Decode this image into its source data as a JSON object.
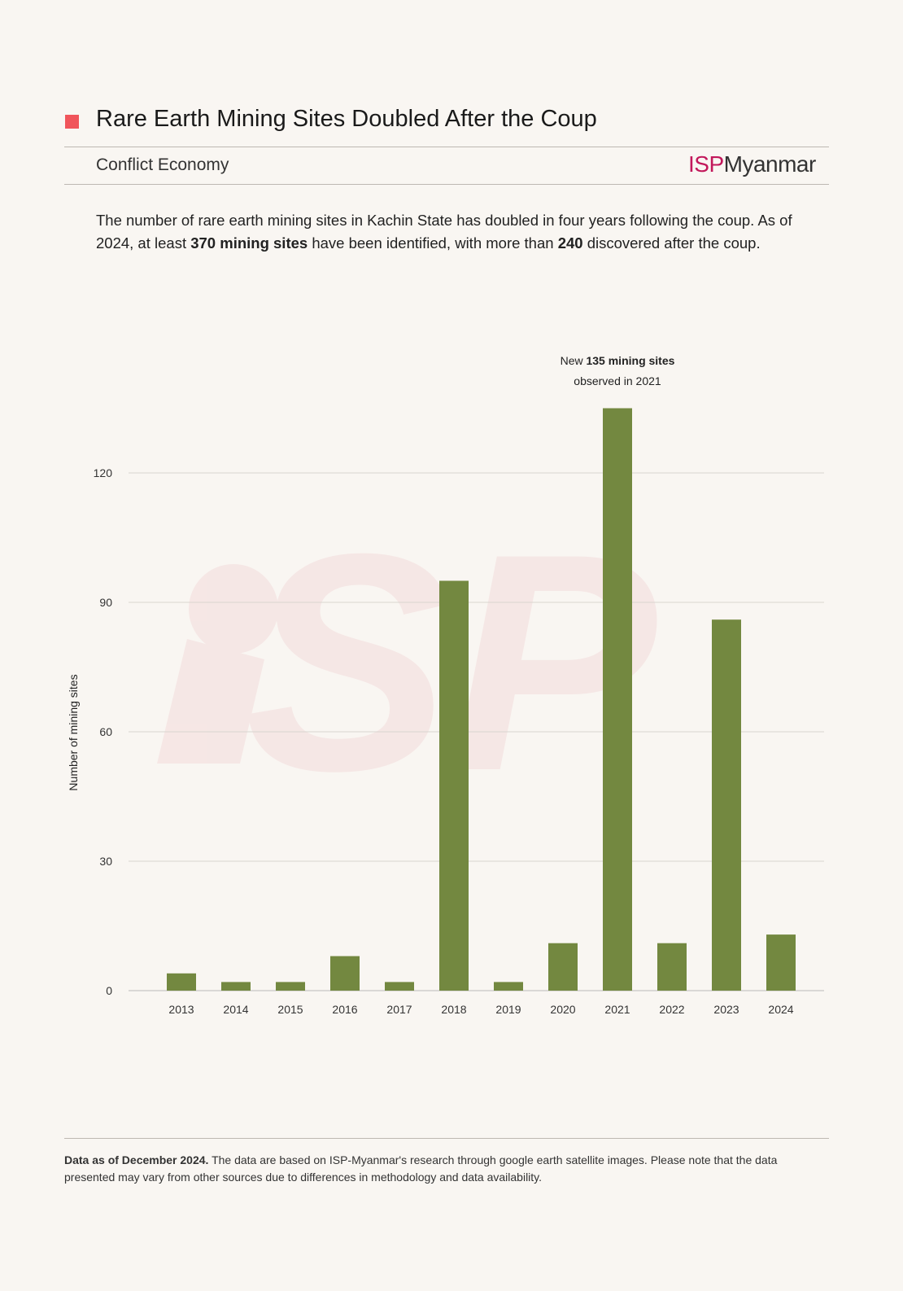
{
  "header": {
    "title": "Rare Earth Mining Sites Doubled After the Coup",
    "category": "Conflict Economy",
    "logo_isp": "ISP",
    "logo_myanmar": "Myanmar"
  },
  "description": {
    "part1": "The number of rare earth mining sites in Kachin State has doubled in four years following the coup. As of 2024, at least ",
    "bold1": "370 mining sites",
    "part2": " have been identified, with more than ",
    "bold2": "240",
    "part3": " discovered after the coup."
  },
  "annotation": {
    "prefix": "New ",
    "bold": "135 mining sites",
    "line2": "observed in 2021"
  },
  "footer": {
    "bold": "Data as of December 2024.",
    "text": " The data are based on ISP-Myanmar's research through google earth satellite images. Please note that the data presented may vary from other sources due to differences in methodology and data availability."
  },
  "colors": {
    "bar": "#738840",
    "accent": "#f0555b",
    "logo": "#c2185b",
    "grid": "#d9d5d0"
  },
  "chart_data": {
    "type": "bar",
    "title": "Rare Earth Mining Sites Doubled After the Coup",
    "xlabel": "",
    "ylabel": "Number of mining sites",
    "categories": [
      "2013",
      "2014",
      "2015",
      "2016",
      "2017",
      "2018",
      "2019",
      "2020",
      "2021",
      "2022",
      "2023",
      "2024"
    ],
    "values": [
      4,
      2,
      2,
      8,
      2,
      95,
      2,
      11,
      135,
      11,
      86,
      13
    ],
    "yticks": [
      0,
      30,
      60,
      90,
      120
    ],
    "ylim": [
      0,
      135
    ],
    "grid": true
  }
}
